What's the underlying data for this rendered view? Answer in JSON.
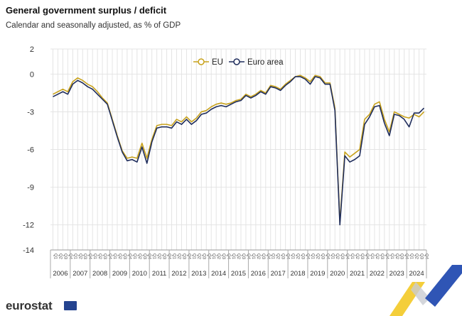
{
  "title": "General government surplus / deficit",
  "subtitle": "Calendar and seasonally adjusted, as % of GDP",
  "brand": "eurostat",
  "chart_data": {
    "type": "line",
    "ylim": [
      -14,
      2
    ],
    "yticks": [
      "2",
      "0",
      "-3",
      "-6",
      "-9",
      "-12",
      "-14"
    ],
    "ytick_values": [
      2,
      0,
      -3,
      -6,
      -9,
      -12,
      -14
    ],
    "quarter_labels": [
      "Q1",
      "Q2",
      "Q3",
      "Q4"
    ],
    "years": [
      "2006",
      "2007",
      "2008",
      "2009",
      "2010",
      "2011",
      "2012",
      "2013",
      "2014",
      "2015",
      "2016",
      "2017",
      "2018",
      "2019",
      "2020",
      "2021",
      "2022",
      "2023",
      "2024"
    ],
    "legend_position": "top-center",
    "grid": true,
    "series": [
      {
        "name": "EU",
        "color": "#c8a21c",
        "values": [
          -1.6,
          -1.4,
          -1.2,
          -1.4,
          -0.6,
          -0.3,
          -0.5,
          -0.8,
          -1.0,
          -1.4,
          -1.9,
          -2.3,
          -3.6,
          -4.9,
          -6.1,
          -6.7,
          -6.6,
          -6.7,
          -5.5,
          -6.7,
          -5.2,
          -4.1,
          -4.0,
          -4.0,
          -4.1,
          -3.6,
          -3.8,
          -3.4,
          -3.8,
          -3.5,
          -3.0,
          -2.9,
          -2.6,
          -2.4,
          -2.3,
          -2.4,
          -2.3,
          -2.1,
          -2.0,
          -1.6,
          -1.8,
          -1.6,
          -1.3,
          -1.5,
          -0.9,
          -1.0,
          -1.2,
          -0.8,
          -0.5,
          -0.2,
          -0.1,
          -0.3,
          -0.6,
          -0.1,
          -0.2,
          -0.7,
          -0.7,
          -2.7,
          -11.8,
          -6.2,
          -6.6,
          -6.3,
          -6.0,
          -3.6,
          -3.2,
          -2.4,
          -2.2,
          -3.6,
          -4.6,
          -3.0,
          -3.2,
          -3.4,
          -3.5,
          -3.2,
          -3.4,
          -3.0
        ],
        "start_year": 2006,
        "start_quarter": 1
      },
      {
        "name": "Euro area",
        "color": "#1f2d5c",
        "values": [
          -1.8,
          -1.6,
          -1.4,
          -1.6,
          -0.8,
          -0.5,
          -0.7,
          -1.0,
          -1.2,
          -1.6,
          -2.0,
          -2.4,
          -3.7,
          -5.0,
          -6.2,
          -6.9,
          -6.8,
          -7.0,
          -5.8,
          -7.1,
          -5.4,
          -4.3,
          -4.2,
          -4.2,
          -4.3,
          -3.8,
          -4.0,
          -3.6,
          -4.0,
          -3.7,
          -3.2,
          -3.1,
          -2.8,
          -2.6,
          -2.5,
          -2.6,
          -2.4,
          -2.2,
          -2.1,
          -1.7,
          -1.9,
          -1.7,
          -1.4,
          -1.6,
          -1.0,
          -1.1,
          -1.3,
          -0.9,
          -0.6,
          -0.2,
          -0.2,
          -0.4,
          -0.8,
          -0.2,
          -0.3,
          -0.8,
          -0.8,
          -2.9,
          -12.0,
          -6.5,
          -7.0,
          -6.8,
          -6.5,
          -4.0,
          -3.4,
          -2.6,
          -2.5,
          -3.9,
          -4.9,
          -3.2,
          -3.3,
          -3.6,
          -4.2,
          -3.1,
          -3.1,
          -2.7
        ],
        "start_year": 2006,
        "start_quarter": 1
      }
    ]
  }
}
